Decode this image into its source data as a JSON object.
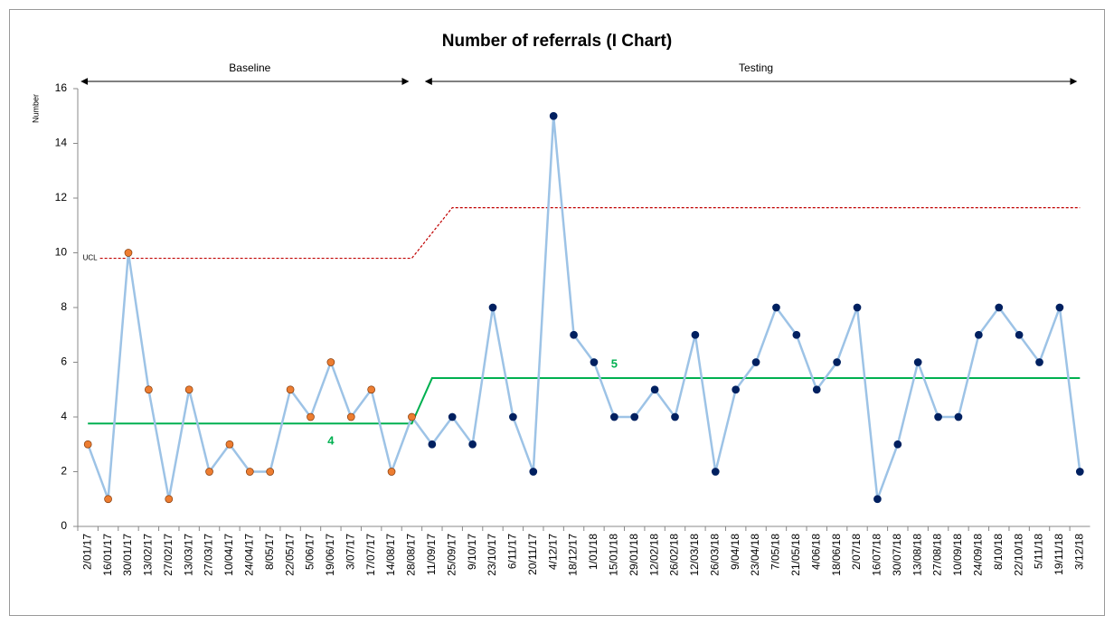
{
  "chart_data": {
    "type": "line",
    "title": "Number of referrals (I Chart)",
    "y_label": "Number",
    "categories": [
      "2/01/17",
      "16/01/17",
      "30/01/17",
      "13/02/17",
      "27/02/17",
      "13/03/17",
      "27/03/17",
      "10/04/17",
      "24/04/17",
      "8/05/17",
      "22/05/17",
      "5/06/17",
      "19/06/17",
      "3/07/17",
      "17/07/17",
      "14/08/17",
      "28/08/17",
      "11/09/17",
      "25/09/17",
      "9/10/17",
      "23/10/17",
      "6/11/17",
      "20/11/17",
      "4/12/17",
      "18/12/17",
      "1/01/18",
      "15/01/18",
      "29/01/18",
      "12/02/18",
      "26/02/18",
      "12/03/18",
      "26/03/18",
      "9/04/18",
      "23/04/18",
      "7/05/18",
      "21/05/18",
      "4/06/18",
      "18/06/18",
      "2/07/18",
      "16/07/18",
      "30/07/18",
      "13/08/18",
      "27/08/18",
      "10/09/18",
      "24/09/18",
      "8/10/18",
      "22/10/18",
      "5/11/18",
      "19/11/18",
      "3/12/18"
    ],
    "series": [
      {
        "name": "Number",
        "color": "#9dc3e6",
        "values": [
          3,
          1,
          10,
          5,
          1,
          5,
          2,
          3,
          2,
          2,
          5,
          4,
          6,
          4,
          5,
          2,
          4,
          3,
          4,
          3,
          8,
          4,
          2,
          15,
          7,
          6,
          4,
          4,
          5,
          4,
          7,
          2,
          5,
          6,
          8,
          7,
          5,
          6,
          8,
          1,
          3,
          6,
          4,
          4,
          7,
          8,
          7,
          6,
          8,
          2
        ]
      }
    ],
    "phases": [
      {
        "label": "Baseline",
        "start": 0,
        "end": 16,
        "marker_color": "#ed7d31",
        "mean": 3.76,
        "mean_label": "4",
        "ucl": 9.8
      },
      {
        "label": "Testing",
        "start": 17,
        "end": 49,
        "marker_color": "#002060",
        "mean": 5.42,
        "mean_label": "5",
        "ucl": 11.65
      }
    ],
    "ucl_label": "UCL",
    "mean_color": "#00b050",
    "ucl_color": "#c00000",
    "ylim": [
      0,
      16
    ],
    "yticks": [
      0,
      2,
      4,
      6,
      8,
      10,
      12,
      14,
      16
    ]
  }
}
